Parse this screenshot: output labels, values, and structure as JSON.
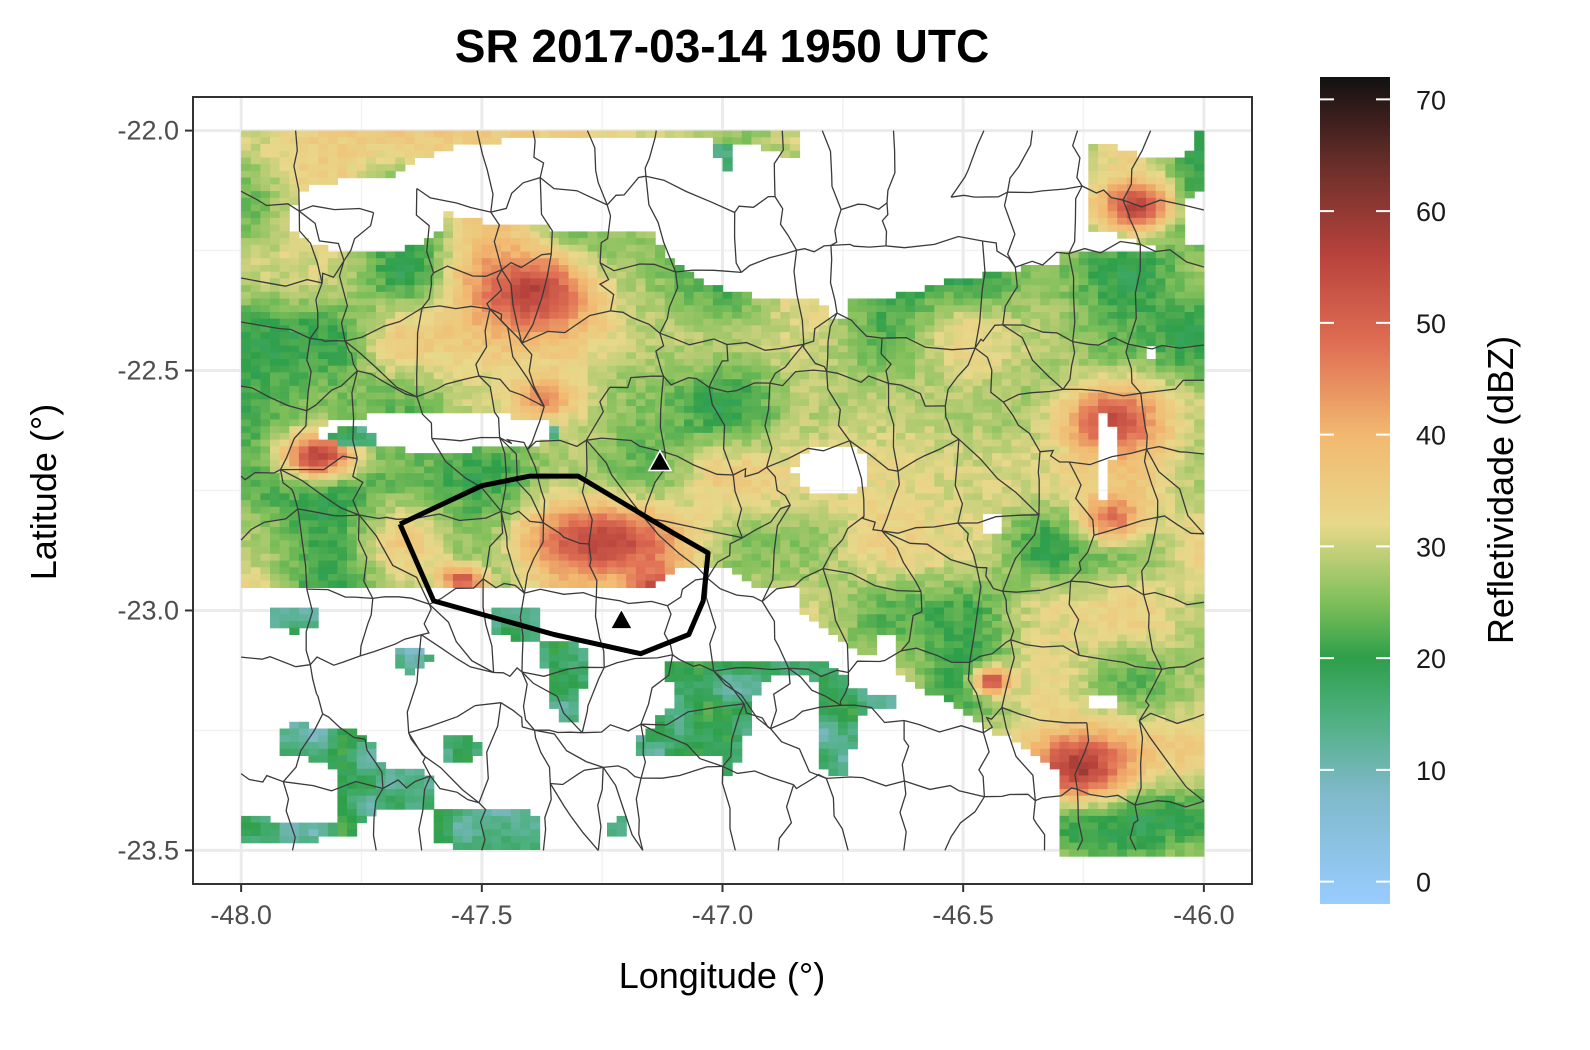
{
  "chart_data": {
    "type": "raster-map",
    "title": "SR 2017-03-14 1950 UTC",
    "xlabel": "Longitude (°)",
    "ylabel": "Latitude (°)",
    "xlim": [
      -48.1,
      -45.9
    ],
    "ylim": [
      -23.57,
      -21.93
    ],
    "x_ticks": [
      -48.0,
      -47.5,
      -47.0,
      -46.5,
      -46.0
    ],
    "x_tick_labels": [
      "-48.0",
      "-47.5",
      "-47.0",
      "-46.5",
      "-46.0"
    ],
    "y_ticks": [
      -22.0,
      -22.5,
      -23.0,
      -23.5
    ],
    "y_tick_labels": [
      "-22.0",
      "-22.5",
      "-23.0",
      "-23.5"
    ],
    "grid": true,
    "colorbar": {
      "title": "Refletividade (dBZ)",
      "range": [
        -2,
        72
      ],
      "ticks": [
        0,
        10,
        20,
        30,
        40,
        50,
        60,
        70
      ],
      "tick_labels": [
        "0",
        "10",
        "20",
        "30",
        "40",
        "50",
        "60",
        "70"
      ],
      "stops": [
        {
          "value": -2,
          "color": "#99ccff"
        },
        {
          "value": 8,
          "color": "#7fb9c9"
        },
        {
          "value": 15,
          "color": "#4caf7d"
        },
        {
          "value": 20,
          "color": "#2e9f4a"
        },
        {
          "value": 25,
          "color": "#7fbf5a"
        },
        {
          "value": 32,
          "color": "#e8d88a"
        },
        {
          "value": 40,
          "color": "#f2b870"
        },
        {
          "value": 48,
          "color": "#e06f54"
        },
        {
          "value": 56,
          "color": "#b8433c"
        },
        {
          "value": 64,
          "color": "#6b2f2a"
        },
        {
          "value": 72,
          "color": "#111111"
        }
      ]
    },
    "polygon": [
      [
        -47.67,
        -22.82
      ],
      [
        -47.5,
        -22.74
      ],
      [
        -47.4,
        -22.72
      ],
      [
        -47.3,
        -22.72
      ],
      [
        -47.2,
        -22.78
      ],
      [
        -47.1,
        -22.84
      ],
      [
        -47.03,
        -22.88
      ],
      [
        -47.04,
        -22.98
      ],
      [
        -47.07,
        -23.05
      ],
      [
        -47.17,
        -23.09
      ],
      [
        -47.35,
        -23.05
      ],
      [
        -47.6,
        -22.98
      ],
      [
        -47.67,
        -22.82
      ]
    ],
    "markers": [
      {
        "lon": -47.13,
        "lat": -22.69
      },
      {
        "lon": -47.21,
        "lat": -23.02
      }
    ],
    "storm_cells": [
      {
        "lon": -47.4,
        "lat": -22.33,
        "sx": 0.13,
        "sy": 0.09,
        "peak": 56
      },
      {
        "lon": -47.48,
        "lat": -22.14,
        "sx": 0.08,
        "sy": 0.04,
        "peak": 46
      },
      {
        "lon": -47.85,
        "lat": -22.67,
        "sx": 0.08,
        "sy": 0.05,
        "peak": 56
      },
      {
        "lon": -47.25,
        "lat": -22.85,
        "sx": 0.18,
        "sy": 0.08,
        "peak": 56
      },
      {
        "lon": -47.15,
        "lat": -22.95,
        "sx": 0.07,
        "sy": 0.06,
        "peak": 54
      },
      {
        "lon": -47.55,
        "lat": -22.93,
        "sx": 0.05,
        "sy": 0.03,
        "peak": 52
      },
      {
        "lon": -46.2,
        "lat": -22.6,
        "sx": 0.1,
        "sy": 0.07,
        "peak": 54
      },
      {
        "lon": -46.15,
        "lat": -22.15,
        "sx": 0.07,
        "sy": 0.05,
        "peak": 56
      },
      {
        "lon": -46.27,
        "lat": -23.32,
        "sx": 0.1,
        "sy": 0.07,
        "peak": 58
      },
      {
        "lon": -46.45,
        "lat": -23.14,
        "sx": 0.04,
        "sy": 0.03,
        "peak": 52
      },
      {
        "lon": -46.2,
        "lat": -22.8,
        "sx": 0.07,
        "sy": 0.05,
        "peak": 48
      },
      {
        "lon": -47.38,
        "lat": -22.55,
        "sx": 0.06,
        "sy": 0.04,
        "peak": 46
      }
    ]
  }
}
